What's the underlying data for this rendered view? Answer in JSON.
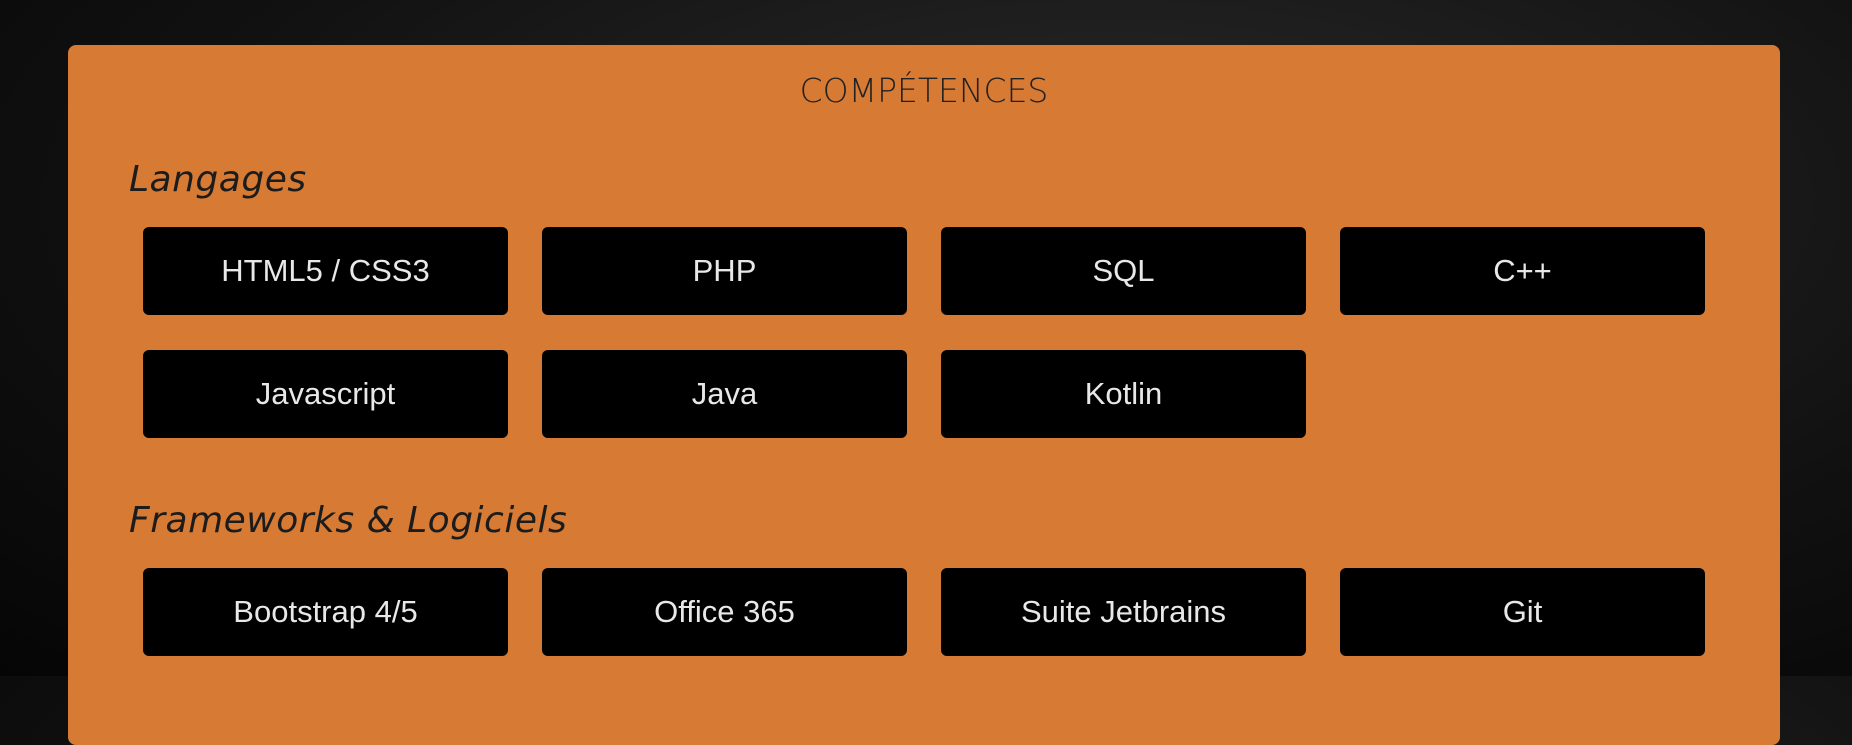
{
  "header": {
    "title": "COMPÉTENCES"
  },
  "sections": [
    {
      "title": "Langages",
      "items": [
        "HTML5 / CSS3",
        "PHP",
        "SQL",
        "C++",
        "Javascript",
        "Java",
        "Kotlin"
      ]
    },
    {
      "title": "Frameworks & Logiciels",
      "items": [
        "Bootstrap 4/5",
        "Office 365",
        "Suite Jetbrains",
        "Git"
      ]
    }
  ]
}
